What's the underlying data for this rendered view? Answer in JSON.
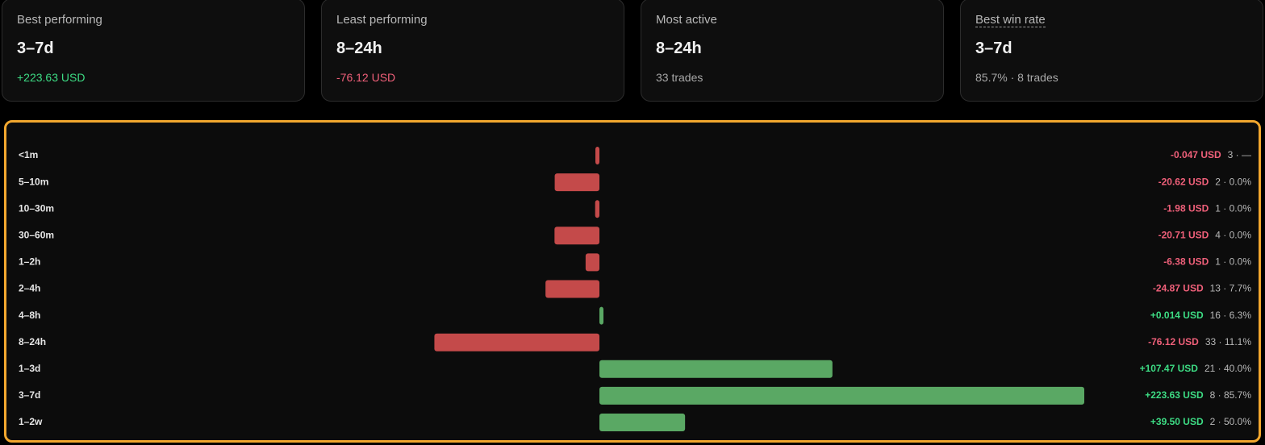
{
  "cards": [
    {
      "label": "Best performing",
      "value": "3–7d",
      "sub": "+223.63 USD"
    },
    {
      "label": "Least performing",
      "value": "8–24h",
      "sub": "-76.12 USD"
    },
    {
      "label": "Most active",
      "value": "8–24h",
      "sub": "33 trades"
    },
    {
      "label": "Best win rate",
      "value": "3–7d",
      "sub": "85.7% · 8 trades"
    }
  ],
  "chart_data": {
    "type": "bar",
    "orientation": "horizontal",
    "categories": [
      "<1m",
      "5–10m",
      "10–30m",
      "30–60m",
      "1–2h",
      "2–4h",
      "4–8h",
      "8–24h",
      "1–3d",
      "3–7d",
      "1–2w"
    ],
    "values": [
      -0.047,
      -20.62,
      -1.98,
      -20.71,
      -6.38,
      -24.87,
      0.014,
      -76.12,
      107.47,
      223.63,
      39.5
    ],
    "value_labels": [
      "-0.047 USD",
      "-20.62 USD",
      "-1.98 USD",
      "-20.71 USD",
      "-6.38 USD",
      "-24.87 USD",
      "+0.014 USD",
      "-76.12 USD",
      "+107.47 USD",
      "+223.63 USD",
      "+39.50 USD"
    ],
    "details": [
      "3 · —",
      "2 · 0.0%",
      "1 · 0.0%",
      "4 · 0.0%",
      "1 · 0.0%",
      "13 · 7.7%",
      "16 · 6.3%",
      "33 · 11.1%",
      "21 · 40.0%",
      "8 · 85.7%",
      "2 · 50.0%"
    ],
    "positive_color": "#5aa864",
    "negative_color": "#c44a4a"
  }
}
